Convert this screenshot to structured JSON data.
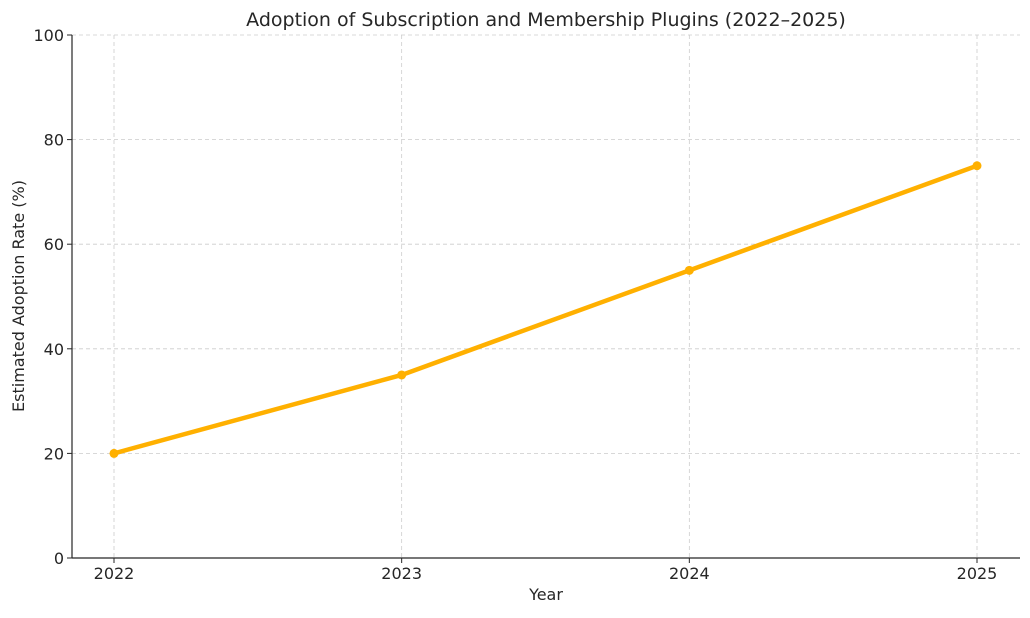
{
  "chart_data": {
    "type": "line",
    "title": "Adoption of Subscription and Membership Plugins (2022–2025)",
    "xlabel": "Year",
    "ylabel": "Estimated Adoption Rate (%)",
    "x": [
      "2022",
      "2023",
      "2024",
      "2025"
    ],
    "series": [
      {
        "values": [
          20,
          35,
          55,
          75
        ],
        "color": "#FFB000",
        "marker": "circle"
      }
    ],
    "yticks": [
      "0",
      "20",
      "40",
      "60",
      "80",
      "100"
    ],
    "ylim": [
      0,
      100
    ],
    "grid": true,
    "grid_style": "dashed"
  }
}
